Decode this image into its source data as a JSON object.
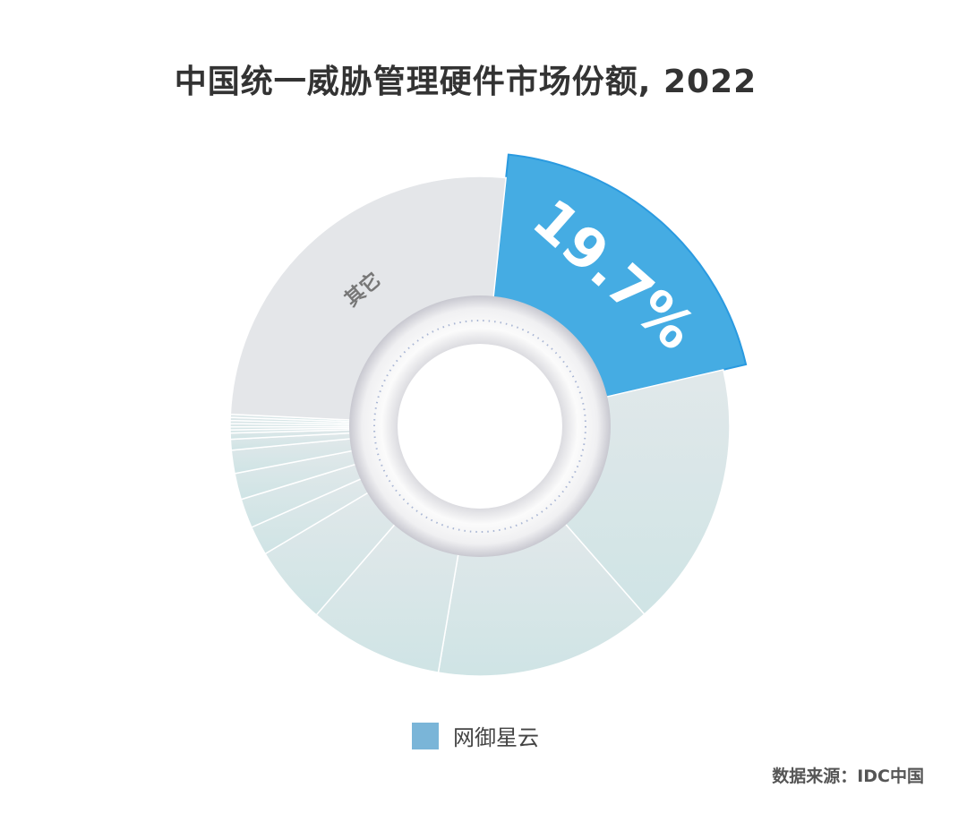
{
  "chart_data": {
    "type": "pie",
    "variant": "donut",
    "title": "中国统一威胁管理硬件市场份额, 2022",
    "values": [
      19.7,
      17.2,
      14.1,
      8.7,
      5.1,
      1.9,
      1.9,
      1.7,
      1.5,
      0.7,
      0.4,
      0.2,
      0.2,
      0.2,
      0.2,
      0.2,
      0.2,
      25.9
    ],
    "labels": [
      "19.7%",
      "",
      "",
      "",
      "",
      "",
      "",
      "",
      "",
      "",
      "",
      "",
      "",
      "",
      "",
      "",
      "",
      "其它"
    ],
    "highlight_index": 0,
    "colors": {
      "highlight": "#45ace3",
      "slices": "#d3e5e7",
      "other": "#e4e6e9",
      "legend": "#7ab5d8"
    },
    "legend": [
      {
        "label": "网御星云",
        "color": "#7ab5d8"
      }
    ],
    "legend_position": "bottom",
    "source": "数据来源：IDC中国"
  }
}
